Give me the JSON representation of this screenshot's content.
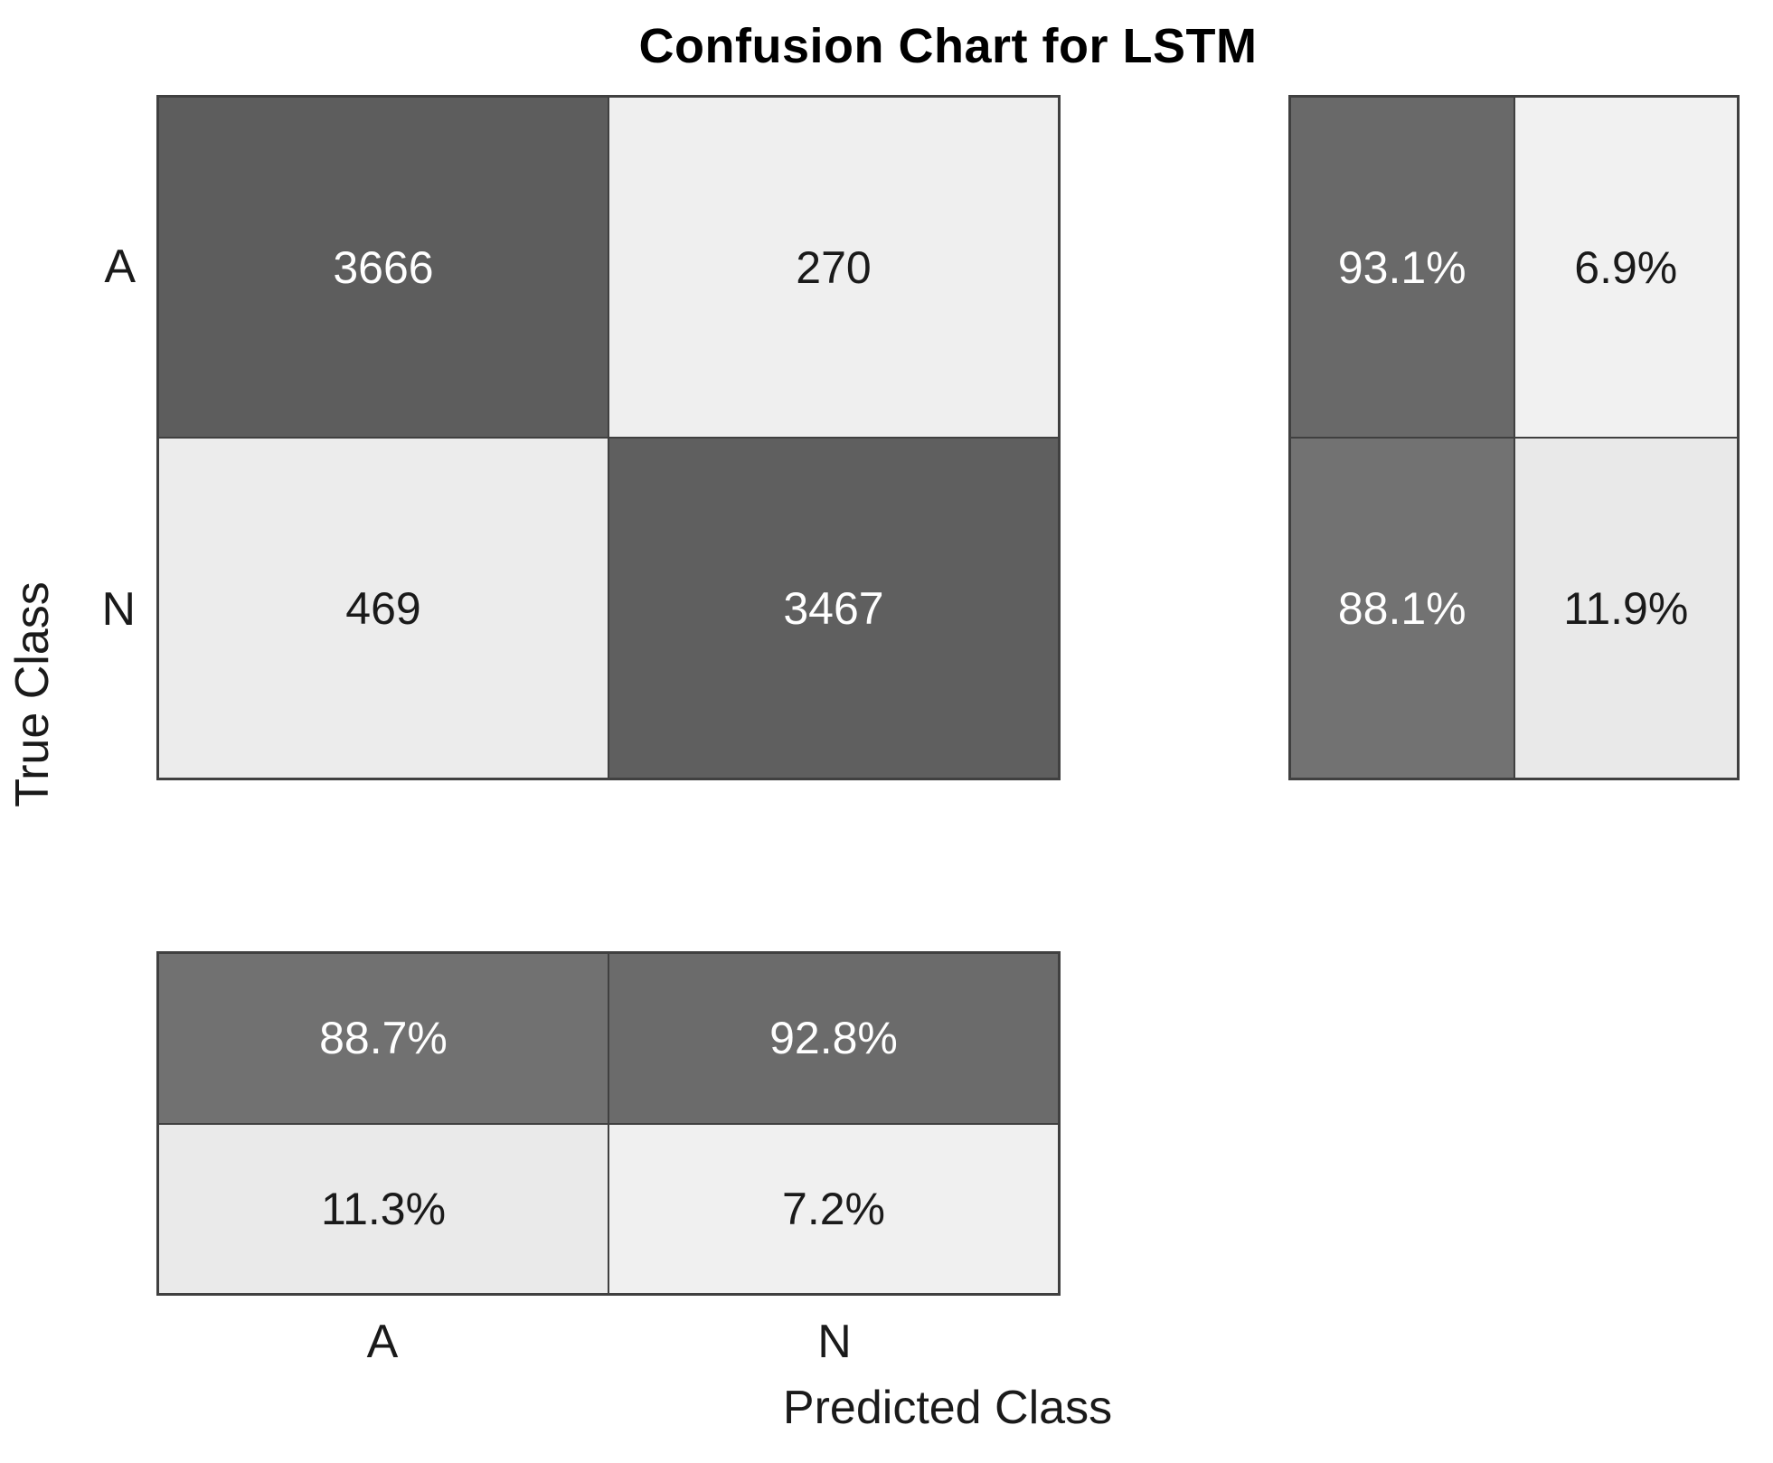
{
  "title": "Confusion Chart for LSTM",
  "axes": {
    "x_label": "Predicted Class",
    "y_label": "True Class",
    "x_ticks": [
      "A",
      "N"
    ],
    "y_ticks": [
      "A",
      "N"
    ]
  },
  "colors": {
    "grid_line": "#404040",
    "diagonal_dark": "#5e5e5e",
    "off_diagonal_light": "#ededed",
    "text_on_dark": "#ffffff",
    "text_on_light": "#1a1a1a",
    "background": "#ffffff"
  },
  "matrix": {
    "cells": [
      {
        "value": "3666",
        "style": "background:#5d5d5d;color:#ffffff"
      },
      {
        "value": "270",
        "style": "background:#efefef;color:#1a1a1a"
      },
      {
        "value": "469",
        "style": "background:#ececec;color:#1a1a1a"
      },
      {
        "value": "3467",
        "style": "background:#5f5f5f;color:#ffffff"
      }
    ]
  },
  "row_summary": {
    "cells": [
      {
        "value": "93.1%",
        "style": "background:#696969;color:#ffffff"
      },
      {
        "value": "6.9%",
        "style": "background:#f1f1f1;color:#1a1a1a"
      },
      {
        "value": "88.1%",
        "style": "background:#727272;color:#ffffff"
      },
      {
        "value": "11.9%",
        "style": "background:#e9e9e9;color:#1a1a1a"
      }
    ]
  },
  "column_summary": {
    "cells": [
      {
        "value": "88.7%",
        "style": "background:#717171;color:#ffffff"
      },
      {
        "value": "92.8%",
        "style": "background:#6b6b6b;color:#ffffff"
      },
      {
        "value": "11.3%",
        "style": "background:#eaeaea;color:#1a1a1a"
      },
      {
        "value": "7.2%",
        "style": "background:#f0f0f0;color:#1a1a1a"
      }
    ]
  },
  "chart_data": {
    "type": "heatmap",
    "title": "Confusion Chart for LSTM",
    "xlabel": "Predicted Class",
    "ylabel": "True Class",
    "classes": [
      "A",
      "N"
    ],
    "confusion_matrix": {
      "rows_are_true_class": true,
      "values": [
        [
          3666,
          270
        ],
        [
          469,
          3467
        ]
      ]
    },
    "row_summary_pct": {
      "description": "row-normalized percentages shown in right panel",
      "values": [
        [
          93.1,
          6.9
        ],
        [
          88.1,
          11.9
        ]
      ]
    },
    "column_summary_pct": {
      "description": "column-normalized percentages shown in bottom panel; top row correct, bottom row incorrect",
      "values": [
        [
          88.7,
          92.8
        ],
        [
          11.3,
          7.2
        ]
      ]
    },
    "legend_position": "none",
    "grid": false
  }
}
